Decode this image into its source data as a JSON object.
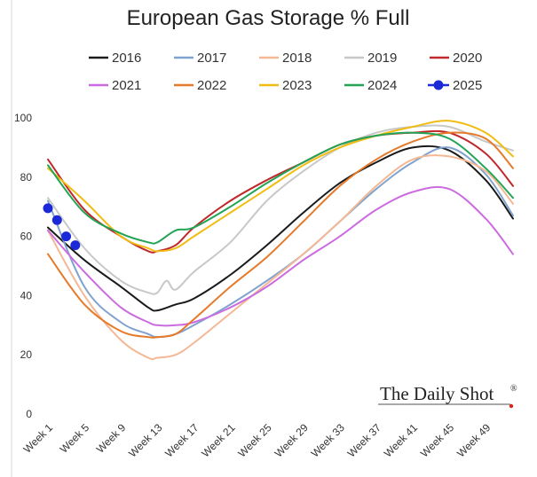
{
  "chart_data": {
    "type": "line",
    "title": "European Gas Storage % Full",
    "xlabel": "",
    "ylabel": "",
    "ylim": [
      0,
      100
    ],
    "yticks": [
      0,
      20,
      40,
      60,
      80,
      100
    ],
    "xtick_labels": [
      "Week 1",
      "Week 5",
      "Week 9",
      "Week 13",
      "Week 17",
      "Week 21",
      "Week 25",
      "Week 29",
      "Week 33",
      "Week 37",
      "Week 41",
      "Week 45",
      "Week 49"
    ],
    "xtick_weeks": [
      1,
      5,
      9,
      13,
      17,
      21,
      25,
      29,
      33,
      37,
      41,
      45,
      49
    ],
    "xlim": [
      1,
      52
    ],
    "grid": false,
    "legend_position": "top",
    "credit": "The Daily Shot",
    "credit_mark": "®",
    "series": [
      {
        "name": "2016",
        "color": "#1a1a1a",
        "knots": [
          [
            1,
            63
          ],
          [
            5,
            52
          ],
          [
            9,
            43
          ],
          [
            12,
            36
          ],
          [
            13,
            35
          ],
          [
            15,
            37
          ],
          [
            17,
            39
          ],
          [
            21,
            47
          ],
          [
            25,
            57
          ],
          [
            29,
            68
          ],
          [
            33,
            78
          ],
          [
            37,
            85
          ],
          [
            41,
            90
          ],
          [
            45,
            89
          ],
          [
            49,
            79
          ],
          [
            52,
            66
          ]
        ]
      },
      {
        "name": "2017",
        "color": "#7fa3cf",
        "knots": [
          [
            1,
            72
          ],
          [
            5,
            43
          ],
          [
            9,
            31
          ],
          [
            12,
            27
          ],
          [
            13,
            26
          ],
          [
            15,
            27
          ],
          [
            17,
            30
          ],
          [
            21,
            37
          ],
          [
            25,
            45
          ],
          [
            29,
            54
          ],
          [
            33,
            65
          ],
          [
            37,
            76
          ],
          [
            41,
            85
          ],
          [
            45,
            90
          ],
          [
            49,
            81
          ],
          [
            52,
            67
          ]
        ]
      },
      {
        "name": "2018",
        "color": "#f4b894",
        "knots": [
          [
            1,
            62
          ],
          [
            5,
            40
          ],
          [
            9,
            25
          ],
          [
            12,
            19
          ],
          [
            13,
            19
          ],
          [
            15,
            20
          ],
          [
            17,
            24
          ],
          [
            21,
            34
          ],
          [
            25,
            44
          ],
          [
            29,
            54
          ],
          [
            33,
            65
          ],
          [
            37,
            77
          ],
          [
            41,
            86
          ],
          [
            45,
            87
          ],
          [
            49,
            82
          ],
          [
            52,
            71
          ]
        ]
      },
      {
        "name": "2019",
        "color": "#c8c8c8",
        "knots": [
          [
            1,
            73
          ],
          [
            5,
            56
          ],
          [
            9,
            45
          ],
          [
            12,
            41
          ],
          [
            13,
            41
          ],
          [
            14,
            45
          ],
          [
            15,
            42
          ],
          [
            17,
            48
          ],
          [
            21,
            58
          ],
          [
            25,
            72
          ],
          [
            29,
            82
          ],
          [
            33,
            90
          ],
          [
            37,
            95
          ],
          [
            41,
            97
          ],
          [
            45,
            97
          ],
          [
            49,
            92
          ],
          [
            52,
            89
          ]
        ]
      },
      {
        "name": "2020",
        "color": "#c0282a",
        "knots": [
          [
            1,
            86
          ],
          [
            5,
            69
          ],
          [
            9,
            60
          ],
          [
            12,
            55
          ],
          [
            13,
            55
          ],
          [
            15,
            57
          ],
          [
            17,
            63
          ],
          [
            21,
            72
          ],
          [
            25,
            79
          ],
          [
            29,
            85
          ],
          [
            33,
            91
          ],
          [
            37,
            94
          ],
          [
            41,
            95
          ],
          [
            45,
            95
          ],
          [
            49,
            88
          ],
          [
            52,
            77
          ]
        ]
      },
      {
        "name": "2021",
        "color": "#cc6bdf",
        "knots": [
          [
            1,
            62
          ],
          [
            5,
            48
          ],
          [
            9,
            36
          ],
          [
            12,
            31
          ],
          [
            13,
            30
          ],
          [
            15,
            30
          ],
          [
            17,
            31
          ],
          [
            21,
            36
          ],
          [
            25,
            43
          ],
          [
            29,
            52
          ],
          [
            33,
            60
          ],
          [
            37,
            69
          ],
          [
            41,
            75
          ],
          [
            45,
            76
          ],
          [
            49,
            66
          ],
          [
            52,
            54
          ]
        ]
      },
      {
        "name": "2022",
        "color": "#e67a2b",
        "knots": [
          [
            1,
            54
          ],
          [
            5,
            37
          ],
          [
            9,
            28
          ],
          [
            12,
            26
          ],
          [
            13,
            26
          ],
          [
            15,
            27
          ],
          [
            17,
            32
          ],
          [
            21,
            43
          ],
          [
            25,
            53
          ],
          [
            29,
            65
          ],
          [
            33,
            77
          ],
          [
            37,
            86
          ],
          [
            41,
            92
          ],
          [
            45,
            95
          ],
          [
            49,
            93
          ],
          [
            52,
            83
          ]
        ]
      },
      {
        "name": "2023",
        "color": "#f1bc13",
        "knots": [
          [
            1,
            83
          ],
          [
            5,
            72
          ],
          [
            9,
            60
          ],
          [
            12,
            56
          ],
          [
            13,
            55
          ],
          [
            15,
            56
          ],
          [
            17,
            60
          ],
          [
            21,
            68
          ],
          [
            25,
            76
          ],
          [
            29,
            84
          ],
          [
            33,
            90
          ],
          [
            37,
            94
          ],
          [
            41,
            97
          ],
          [
            45,
            99
          ],
          [
            49,
            95
          ],
          [
            52,
            87
          ]
        ]
      },
      {
        "name": "2024",
        "color": "#23a455",
        "knots": [
          [
            1,
            84
          ],
          [
            5,
            68
          ],
          [
            9,
            61
          ],
          [
            12,
            58
          ],
          [
            13,
            58
          ],
          [
            15,
            62
          ],
          [
            17,
            63
          ],
          [
            21,
            70
          ],
          [
            25,
            78
          ],
          [
            29,
            85
          ],
          [
            33,
            91
          ],
          [
            37,
            94
          ],
          [
            41,
            95
          ],
          [
            45,
            93
          ],
          [
            49,
            83
          ],
          [
            52,
            73
          ]
        ]
      },
      {
        "name": "2025",
        "color": "#1c29d8",
        "marker": true,
        "points": [
          [
            1,
            69.5
          ],
          [
            2,
            65.5
          ],
          [
            3,
            60
          ],
          [
            4,
            57
          ]
        ]
      }
    ]
  }
}
